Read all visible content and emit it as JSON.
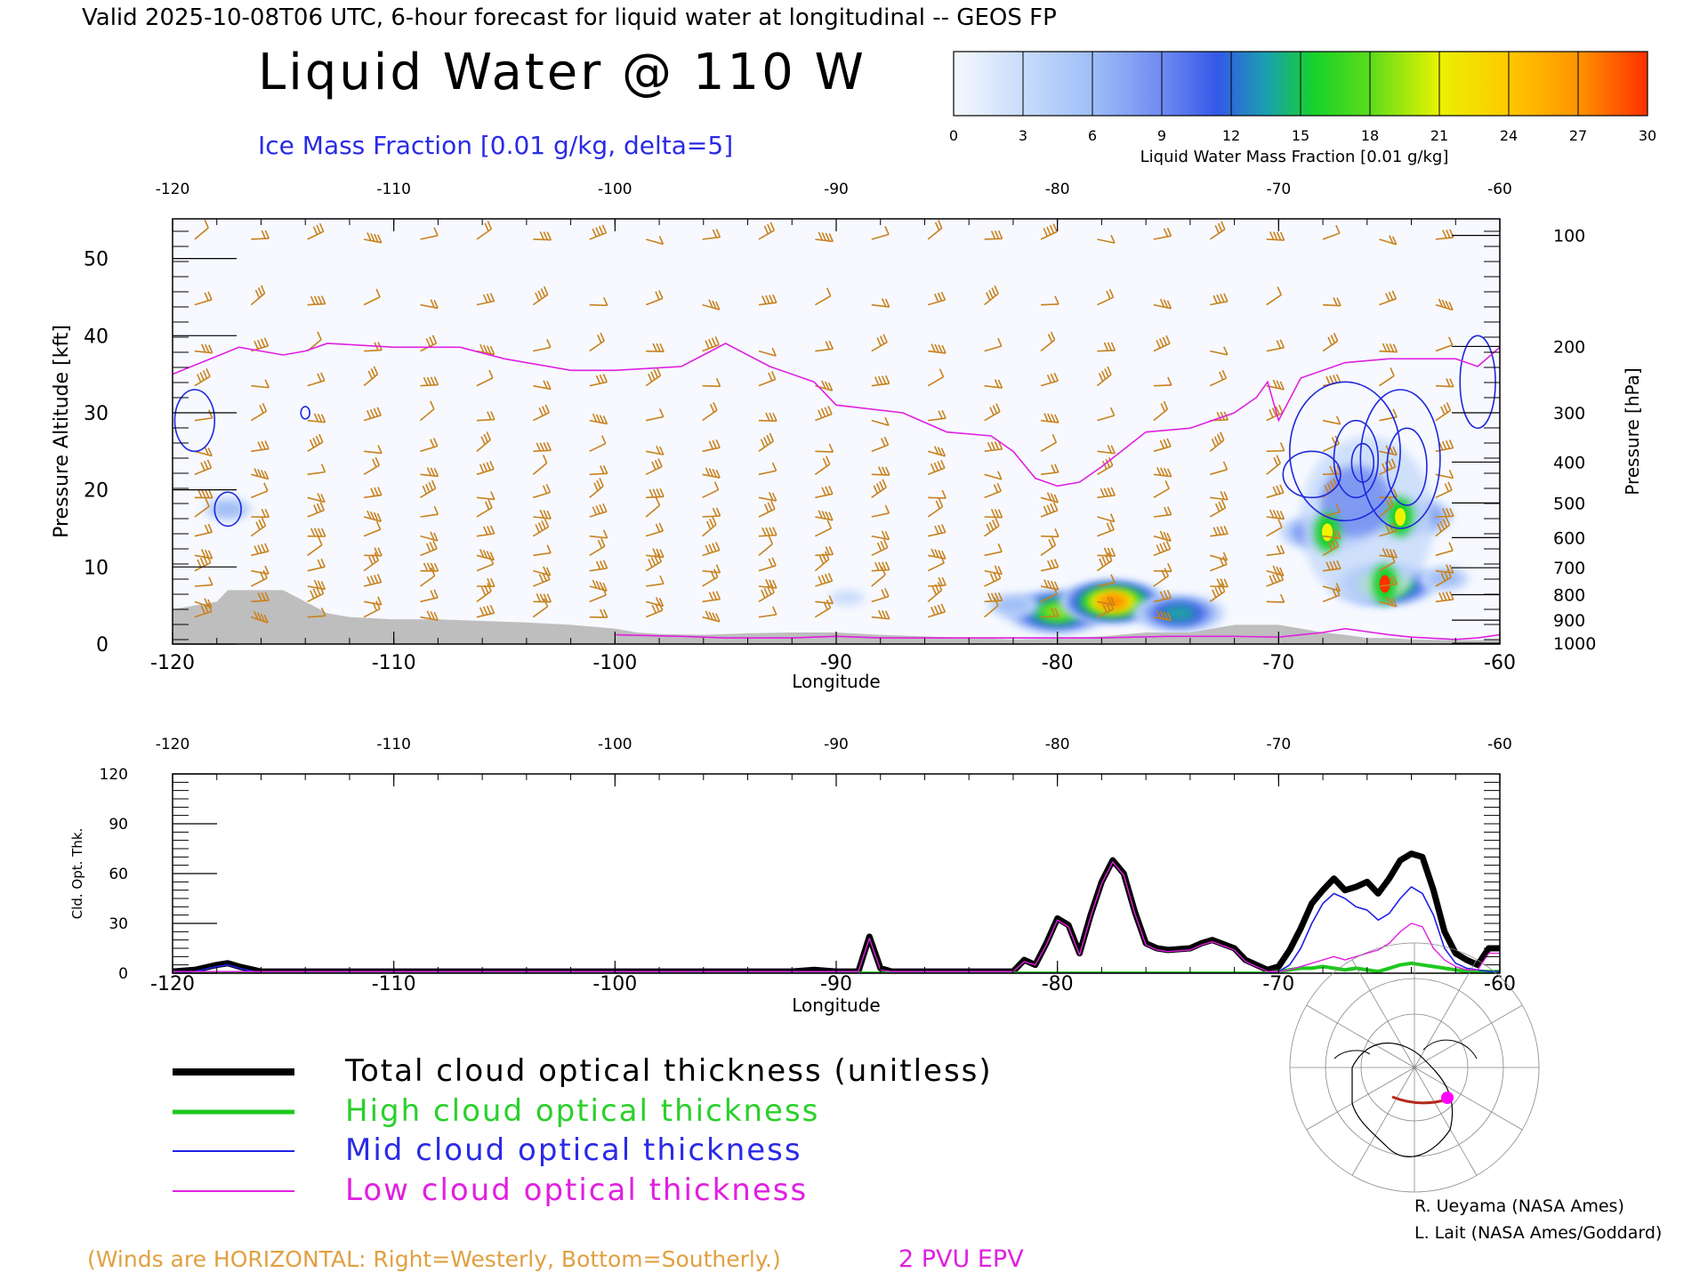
{
  "header": {
    "valid_line": "Valid 2025-10-08T06 UTC, 6-hour forecast for liquid water at longitudinal -- GEOS FP",
    "title": "Liquid Water @ 110 W",
    "subtitle": "Ice Mass Fraction [0.01 g/kg, delta=5]"
  },
  "colorbar": {
    "label": "Liquid Water Mass Fraction [0.01 g/kg]",
    "ticks": [
      "0",
      "3",
      "6",
      "9",
      "12",
      "15",
      "18",
      "21",
      "24",
      "27",
      "30"
    ],
    "colors": [
      "#f7f9ff",
      "#c9dcfb",
      "#9ebdf6",
      "#6e8af0",
      "#3a5ae8",
      "#1ba6a0",
      "#16d228",
      "#8ee01b",
      "#f2f200",
      "#ffbf00",
      "#ff8a00",
      "#ff3000"
    ]
  },
  "chart_data": [
    {
      "type": "heatmap",
      "title": "Liquid Water @ 110 W",
      "xlabel": "Longitude",
      "ylabel": "Pressure Altitude [kft]",
      "y2label": "Pressure [hPa]",
      "xlim": [
        -120,
        -60
      ],
      "ylim": [
        0,
        55
      ],
      "x_ticks": [
        "-120",
        "-110",
        "-100",
        "-90",
        "-80",
        "-70",
        "-60"
      ],
      "y_ticks": [
        "0",
        "10",
        "20",
        "30",
        "40",
        "50"
      ],
      "pressure_ticks": [
        {
          "label": "100",
          "kft": 53
        },
        {
          "label": "200",
          "kft": 38.6
        },
        {
          "label": "300",
          "kft": 30
        },
        {
          "label": "400",
          "kft": 23.6
        },
        {
          "label": "500",
          "kft": 18.3
        },
        {
          "label": "600",
          "kft": 13.8
        },
        {
          "label": "700",
          "kft": 9.9
        },
        {
          "label": "800",
          "kft": 6.4
        },
        {
          "label": "900",
          "kft": 3.1
        },
        {
          "label": "1000",
          "kft": 0.1
        }
      ],
      "liquid_water_blobs": [
        {
          "lon": -80,
          "kft": 4.2,
          "value": 22
        },
        {
          "lon": -77.5,
          "kft": 5.5,
          "value": 30
        },
        {
          "lon": -74.5,
          "kft": 4.0,
          "value": 16
        },
        {
          "lon": -82,
          "kft": 5.0,
          "value": 8
        },
        {
          "lon": -67.8,
          "kft": 14.5,
          "value": 17
        },
        {
          "lon": -64.5,
          "kft": 16.5,
          "value": 20
        },
        {
          "lon": -65.2,
          "kft": 7.8,
          "value": 24
        },
        {
          "lon": -66.5,
          "kft": 20,
          "value": 8
        },
        {
          "lon": -62.5,
          "kft": 8.5,
          "value": 8
        },
        {
          "lon": -117.5,
          "kft": 17.5,
          "value": 7
        },
        {
          "lon": -89.5,
          "kft": 6,
          "value": 3
        }
      ],
      "epv_2pvu_line": {
        "lon": [
          -120,
          -117,
          -115,
          -114,
          -113,
          -110,
          -107,
          -105,
          -102,
          -100,
          -97,
          -96,
          -95,
          -93,
          -91,
          -90,
          -87,
          -85,
          -83,
          -82,
          -81,
          -80,
          -79,
          -78,
          -76,
          -74,
          -72,
          -71,
          -70.5,
          -70,
          -69,
          -67,
          -65,
          -64,
          -62,
          -61,
          -60
        ],
        "kft": [
          35,
          38.5,
          37.5,
          38,
          39,
          38.5,
          38.5,
          37,
          35.5,
          35.5,
          36,
          37.5,
          39,
          36,
          34,
          31,
          30,
          27.5,
          27,
          25,
          21.5,
          20.5,
          21,
          23,
          27.5,
          28,
          30,
          32,
          34,
          29,
          34.5,
          36.5,
          37,
          37,
          37,
          36,
          38.5
        ]
      },
      "epv_low_segment": {
        "lon": [
          -100,
          -97,
          -95,
          -92,
          -90,
          -88,
          -85,
          -82,
          -80,
          -78,
          -75,
          -72,
          -70,
          -69,
          -68,
          -67,
          -66,
          -65,
          -64,
          -62,
          -61,
          -60
        ],
        "kft": [
          1.2,
          1.0,
          0.8,
          0.8,
          1.0,
          0.8,
          0.8,
          0.8,
          0.8,
          0.8,
          1.0,
          1.0,
          0.9,
          1.2,
          1.5,
          2.0,
          1.6,
          1.2,
          0.9,
          0.6,
          0.8,
          1.2
        ]
      },
      "terrain": {
        "lon": [
          -120,
          -119,
          -118,
          -117.5,
          -117,
          -116,
          -115,
          -114,
          -113,
          -112,
          -110,
          -108,
          -106,
          -104,
          -102,
          -100,
          -99,
          -98,
          -96,
          -94,
          -92,
          -90,
          -88,
          -86,
          -84,
          -82,
          -80,
          -78,
          -76,
          -74,
          -72,
          -70,
          -69,
          -68,
          -67,
          -66,
          -65,
          -64,
          -62,
          -60
        ],
        "kft": [
          4.5,
          5,
          5.5,
          7,
          7,
          7,
          7,
          5.5,
          4,
          3.5,
          3.2,
          3.2,
          3,
          2.8,
          2.5,
          2,
          1.5,
          1.3,
          1.2,
          1.4,
          1.5,
          1.5,
          1.2,
          1.0,
          0.8,
          0.6,
          0.7,
          1.0,
          1.5,
          1.5,
          2.5,
          2.5,
          2.0,
          1.5,
          1.2,
          0.8,
          0.8,
          0.6,
          0.5,
          0.5
        ]
      },
      "ice_contour_loops": [
        {
          "lon": -119,
          "kft": 29,
          "dlon": 0.9,
          "dkft": 4
        },
        {
          "lon": -117.5,
          "kft": 17.5,
          "dlon": 0.6,
          "dkft": 2.2
        },
        {
          "lon": -114,
          "kft": 30,
          "dlon": 0.2,
          "dkft": 0.8
        },
        {
          "lon": -67,
          "kft": 25,
          "dlon": 2.5,
          "dkft": 9
        },
        {
          "lon": -68.5,
          "kft": 22,
          "dlon": 1.3,
          "dkft": 3
        },
        {
          "lon": -66.5,
          "kft": 24,
          "dlon": 1.0,
          "dkft": 5
        },
        {
          "lon": -66.2,
          "kft": 23.5,
          "dlon": 0.5,
          "dkft": 2.5
        },
        {
          "lon": -64.5,
          "kft": 24,
          "dlon": 1.8,
          "dkft": 9
        },
        {
          "lon": -64.2,
          "kft": 23,
          "dlon": 0.9,
          "dkft": 5
        },
        {
          "lon": -61,
          "kft": 34,
          "dlon": 0.8,
          "dkft": 6
        }
      ],
      "legend_notes": {
        "winds": "(Winds are HORIZONTAL: Right=Westerly, Bottom=Southerly.)",
        "epv": "2 PVU EPV"
      }
    },
    {
      "type": "line",
      "xlabel": "Longitude",
      "ylabel": "Cld. Opt. Thk.",
      "xlim": [
        -120,
        -60
      ],
      "ylim": [
        0,
        120
      ],
      "x_ticks": [
        "-120",
        "-110",
        "-100",
        "-90",
        "-80",
        "-70",
        "-60"
      ],
      "y_ticks": [
        "0",
        "30",
        "60",
        "90",
        "120"
      ],
      "x": [
        -120,
        -119,
        -118,
        -117.5,
        -117,
        -116,
        -115,
        -110,
        -100,
        -92,
        -91,
        -90,
        -89,
        -88.5,
        -88,
        -87.5,
        -87,
        -85,
        -83,
        -82,
        -81.5,
        -81,
        -80.5,
        -80,
        -79.5,
        -79,
        -78.5,
        -78,
        -77.5,
        -77,
        -76.5,
        -76,
        -75.5,
        -75,
        -74,
        -73.5,
        -73,
        -72,
        -71.5,
        -71,
        -70.5,
        -70,
        -69.5,
        -69,
        -68.5,
        -68,
        -67.5,
        -67,
        -66.5,
        -66,
        -65.5,
        -65,
        -64.5,
        -64,
        -63.5,
        -63,
        -62.5,
        -62,
        -61.5,
        -61,
        -60.5,
        -60
      ],
      "series": [
        {
          "name": "Total cloud optical thickness (unitless)",
          "color": "#000000",
          "values": [
            1,
            2,
            5,
            6,
            4,
            1,
            1,
            1,
            1,
            1,
            2,
            1,
            1,
            22,
            3,
            1,
            1,
            1,
            1,
            1,
            8,
            5,
            18,
            33,
            29,
            12,
            35,
            55,
            68,
            60,
            37,
            18,
            15,
            14,
            15,
            18,
            20,
            15,
            8,
            5,
            2,
            4,
            14,
            27,
            42,
            50,
            57,
            50,
            52,
            55,
            48,
            57,
            68,
            72,
            70,
            50,
            25,
            12,
            8,
            5,
            15,
            15
          ]
        },
        {
          "name": "High cloud optical thickness",
          "color": "#1ec81e",
          "values": [
            0,
            0,
            0,
            0,
            0,
            0,
            0,
            0,
            0,
            0,
            0,
            0,
            0,
            0,
            0,
            0,
            0,
            0,
            0,
            0,
            0,
            0,
            0,
            0,
            0,
            0,
            0,
            0,
            0,
            0,
            0,
            0,
            0,
            0,
            0,
            0,
            0,
            0,
            0,
            0,
            0,
            1,
            2,
            3,
            3,
            4,
            3,
            2,
            3,
            2,
            1,
            3,
            5,
            6,
            5,
            4,
            3,
            2,
            1,
            1,
            1,
            1
          ]
        },
        {
          "name": "Mid cloud optical thickness",
          "color": "#2020e6",
          "values": [
            0,
            1,
            4,
            5,
            3,
            0,
            0,
            0,
            0,
            0,
            0,
            0,
            0,
            0,
            0,
            0,
            0,
            0,
            0,
            0,
            0,
            0,
            0,
            0,
            0,
            0,
            0,
            0,
            0,
            0,
            0,
            0,
            0,
            0,
            0,
            0,
            0,
            0,
            0,
            0,
            0,
            1,
            5,
            15,
            30,
            42,
            48,
            45,
            40,
            38,
            32,
            36,
            45,
            52,
            48,
            35,
            15,
            6,
            3,
            2,
            1,
            1
          ]
        },
        {
          "name": "Low cloud optical thickness",
          "color": "#e020e0",
          "values": [
            1,
            1,
            1,
            1,
            1,
            1,
            1,
            1,
            1,
            1,
            1,
            1,
            1,
            21,
            2,
            1,
            1,
            1,
            1,
            1,
            7,
            5,
            17,
            32,
            28,
            11,
            34,
            54,
            67,
            59,
            36,
            17,
            14,
            13,
            14,
            17,
            19,
            14,
            7,
            4,
            1,
            1,
            2,
            4,
            6,
            8,
            10,
            8,
            10,
            12,
            14,
            18,
            25,
            30,
            28,
            15,
            8,
            4,
            2,
            2,
            12,
            12
          ]
        }
      ]
    }
  ],
  "credits": {
    "line1": "R. Ueyama (NASA Ames)",
    "line2": "L. Lait (NASA Ames/Goddard)"
  },
  "colors": {
    "wind_barb": "#c8821e",
    "terrain": "#bebebe",
    "epv": "#e020e0",
    "ice_contour": "#1e28dc",
    "field_background": "#f7f9ff",
    "subtitle": "#2a2ae6",
    "wind_note": "#e0a040",
    "map_track": "#b4281e",
    "map_point": "#ff00ff"
  },
  "locator_map": {
    "icon": "north-polar-map-icon"
  }
}
